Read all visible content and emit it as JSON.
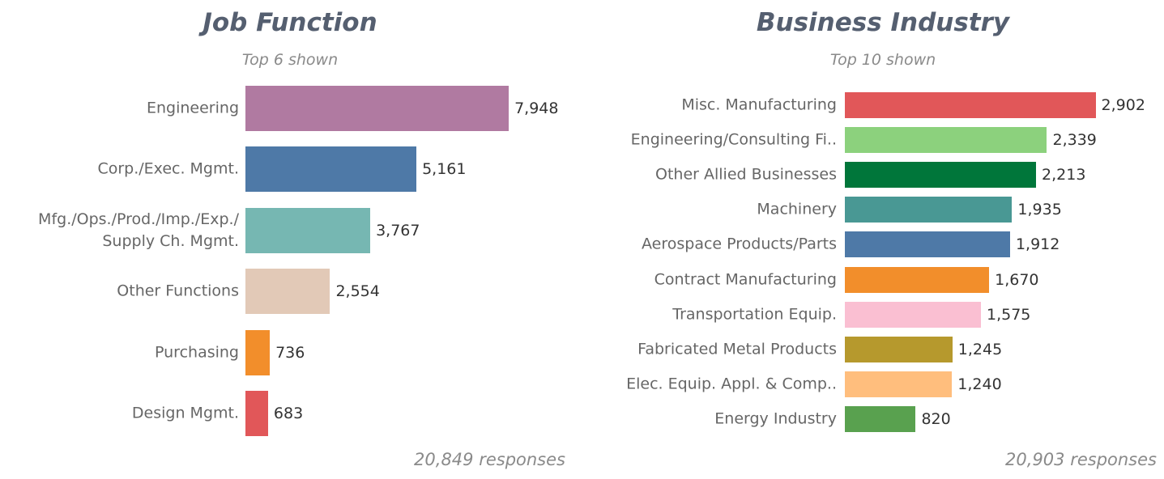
{
  "chart_data": [
    {
      "type": "bar",
      "orientation": "horizontal",
      "title": "Job Function",
      "subtitle": "Top 6 shown",
      "categories": [
        "Engineering",
        "Corp./Exec. Mgmt.",
        "Mfg./Ops./Prod./Imp./Exp./\nSupply Ch. Mgmt.",
        "Other Functions",
        "Purchasing",
        "Design Mgmt."
      ],
      "values": [
        7948,
        5161,
        3767,
        2554,
        736,
        683
      ],
      "value_labels": [
        "7,948",
        "5,161",
        "3,767",
        "2,554",
        "736",
        "683"
      ],
      "colors": [
        "#b07aa1",
        "#4e79a7",
        "#76b7b2",
        "#e2c9b7",
        "#f28e2b",
        "#e15759"
      ],
      "xlim": [
        0,
        10000
      ],
      "footnote": "20,849 responses"
    },
    {
      "type": "bar",
      "orientation": "horizontal",
      "title": "Business Industry",
      "subtitle": "Top 10 shown",
      "categories": [
        "Misc. Manufacturing",
        "Engineering/Consulting Fi..",
        "Other Allied Businesses",
        "Machinery",
        "Aerospace Products/Parts",
        "Contract Manufacturing",
        "Transportation Equip.",
        "Fabricated Metal Products",
        "Elec. Equip. Appl. & Comp..",
        "Energy Industry"
      ],
      "values": [
        2902,
        2339,
        2213,
        1935,
        1912,
        1670,
        1575,
        1245,
        1240,
        820
      ],
      "value_labels": [
        "2,902",
        "2,339",
        "2,213",
        "1,935",
        "1,912",
        "1,670",
        "1,575",
        "1,245",
        "1,240",
        "820"
      ],
      "colors": [
        "#e15759",
        "#8cd17d",
        "#00763a",
        "#499894",
        "#4e79a7",
        "#f28e2b",
        "#fabfd2",
        "#b6992d",
        "#ffbe7d",
        "#59a14f"
      ],
      "xlim": [
        0,
        3000
      ],
      "footnote": "20,903 responses"
    }
  ]
}
